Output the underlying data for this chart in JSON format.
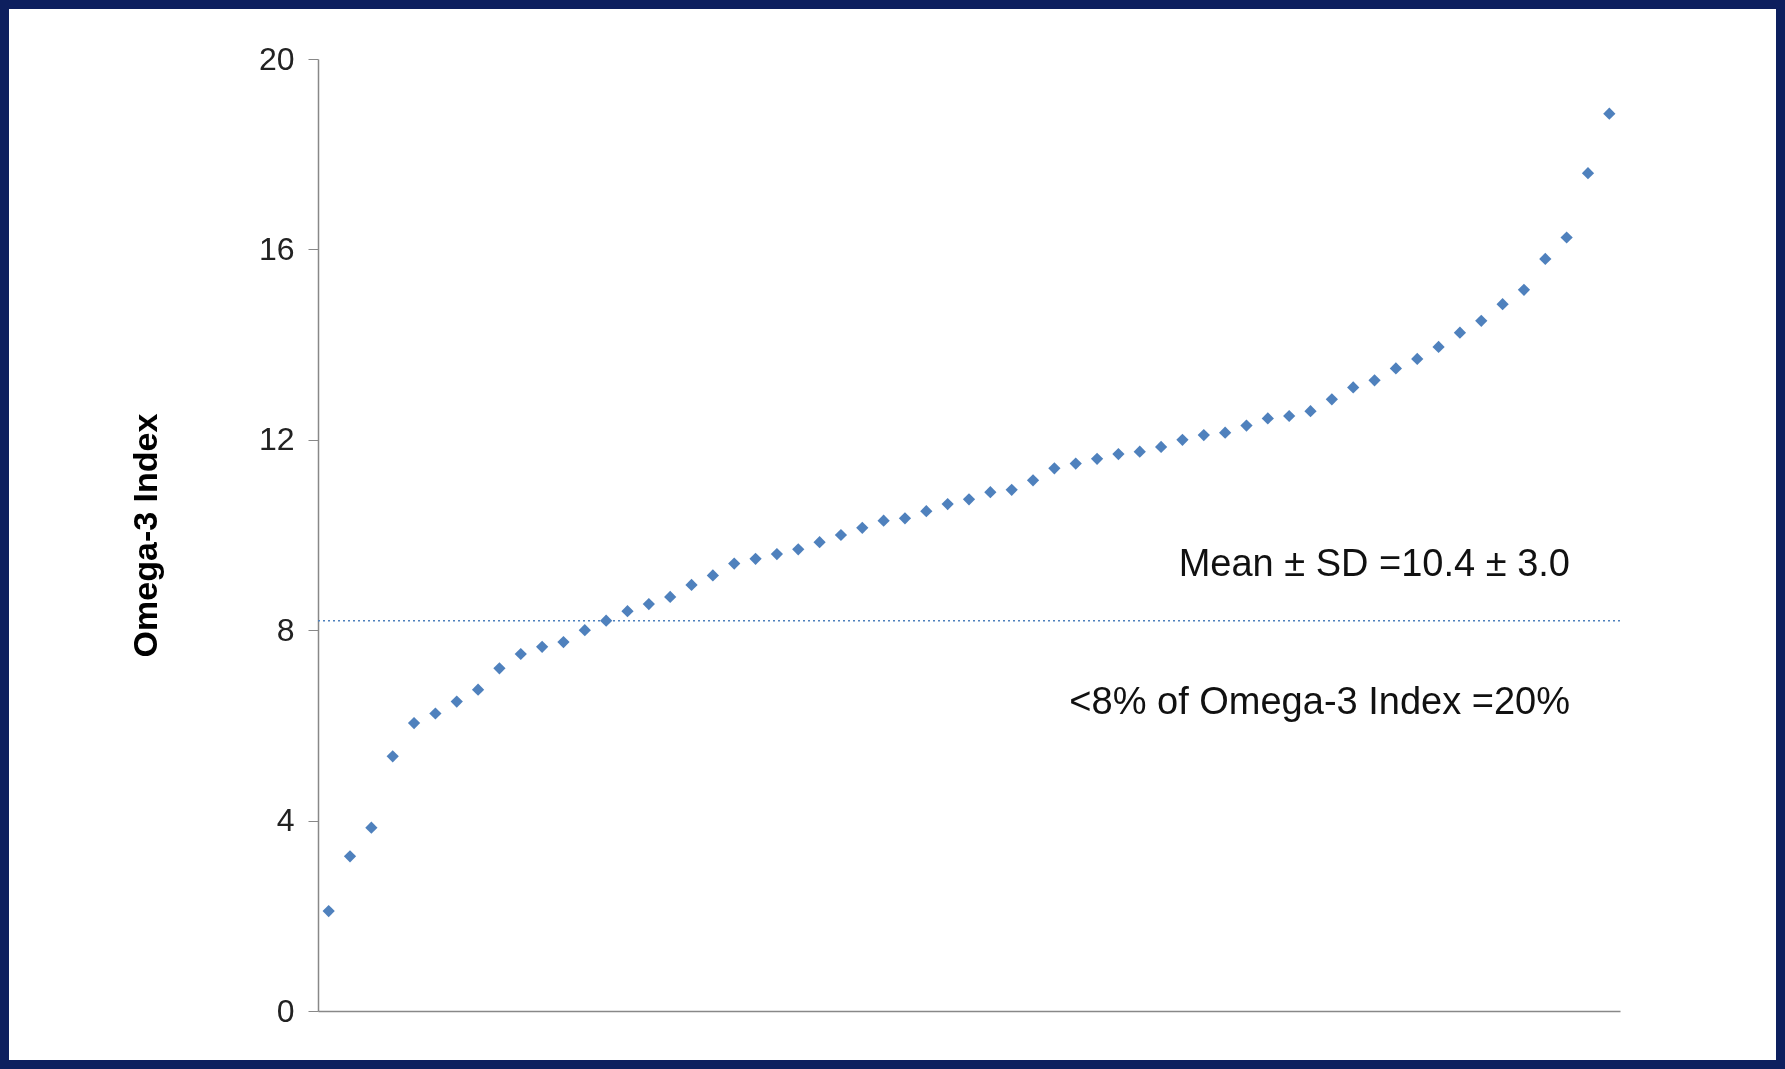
{
  "chart_data": {
    "type": "scatter",
    "ylabel": "Omega-3 Index",
    "categories": [
      null,
      null,
      null,
      null,
      null,
      null,
      null,
      null,
      null,
      null,
      null,
      null,
      null,
      null,
      null,
      null,
      null,
      null,
      null,
      null,
      null,
      null,
      null,
      null,
      null,
      null,
      null,
      null,
      null,
      null,
      null,
      null,
      null,
      null,
      null,
      null,
      null,
      null,
      null,
      null,
      null,
      null,
      null,
      null,
      null,
      null,
      null,
      null,
      null,
      null,
      null,
      null,
      null,
      null,
      null,
      null,
      null,
      null,
      null,
      null,
      null
    ],
    "series": [
      {
        "color": "#4f81bd",
        "values": [
          2.1,
          3.25,
          3.85,
          5.35,
          6.05,
          6.25,
          6.5,
          6.75,
          7.2,
          7.5,
          7.65,
          7.75,
          8.0,
          8.2,
          8.4,
          8.55,
          8.7,
          8.95,
          9.15,
          9.4,
          9.5,
          9.6,
          9.7,
          9.85,
          10.0,
          10.15,
          10.3,
          10.35,
          10.5,
          10.65,
          10.75,
          10.9,
          10.95,
          11.15,
          11.4,
          11.5,
          11.6,
          11.7,
          11.75,
          11.85,
          12.0,
          12.1,
          12.15,
          12.3,
          12.45,
          12.5,
          12.6,
          12.85,
          13.1,
          13.25,
          13.5,
          13.7,
          13.95,
          14.25,
          14.5,
          14.85,
          15.15,
          15.8,
          16.25,
          17.6,
          18.85
        ]
      }
    ],
    "ylim": [
      0,
      20
    ],
    "yticks": [
      0,
      4,
      8,
      12,
      16,
      20
    ],
    "grid": false,
    "marker": "diamond",
    "ref_lines": [
      {
        "axis": "y",
        "value": 8.2,
        "color": "#4f81bd",
        "line_style": "dotted"
      }
    ],
    "annotations": [
      "Mean ± SD =10.4 ± 3.0",
      "<8% of Omega-3 Index =20%"
    ]
  }
}
